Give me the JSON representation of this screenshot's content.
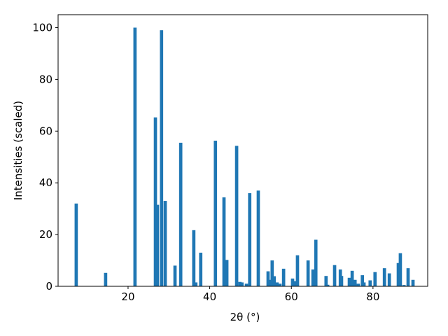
{
  "chart_data": {
    "type": "bar",
    "x_label": "2θ (°)",
    "y_label": "Intensities (scaled)",
    "color": "#1f77b4",
    "x": [
      7.3,
      14.5,
      21.7,
      26.7,
      27.2,
      28.2,
      29.1,
      31.5,
      32.9,
      36.1,
      36.6,
      37.8,
      41.4,
      43.5,
      44.2,
      46.6,
      47.4,
      47.9,
      49.0,
      49.8,
      51.9,
      54.3,
      54.9,
      55.3,
      55.8,
      56.5,
      57.2,
      58.1,
      60.3,
      61.0,
      61.5,
      64.1,
      65.3,
      66.0,
      68.5,
      68.9,
      70.6,
      72.0,
      72.3,
      74.2,
      74.9,
      75.6,
      76.4,
      77.4,
      77.8,
      79.3,
      80.5,
      82.8,
      84.0,
      86.2,
      86.7,
      87.6,
      88.6,
      89.8
    ],
    "values": [
      32,
      5.2,
      100,
      65.3,
      31.5,
      99,
      33,
      8,
      55.5,
      21.7,
      1.5,
      13,
      56.3,
      34.4,
      10.2,
      54.3,
      1.7,
      1.5,
      1,
      36,
      37,
      5.8,
      2.5,
      10,
      3.9,
      1.5,
      1,
      6.8,
      3,
      2,
      12,
      10,
      6.5,
      18,
      4,
      0.6,
      8.2,
      6.5,
      4,
      3.3,
      6,
      2.5,
      1,
      4.3,
      1.5,
      2.3,
      5.5,
      7,
      5,
      9,
      12.8,
      0.5,
      7,
      2.5
    ],
    "xlim": [
      2.86,
      93.4
    ],
    "ylim": [
      0,
      105
    ],
    "xticks": [
      20,
      40,
      60,
      80
    ],
    "yticks": [
      0,
      20,
      40,
      60,
      80,
      100
    ]
  }
}
